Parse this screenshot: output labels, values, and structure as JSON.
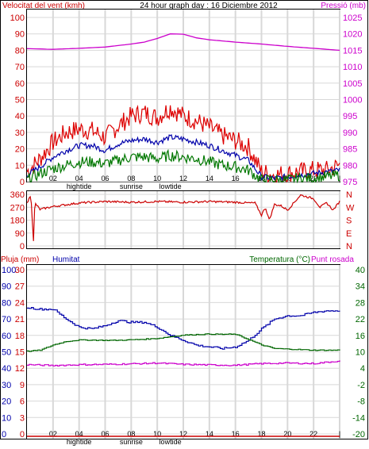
{
  "header": {
    "left": "Velocitat del vent (kmh)",
    "center": "24 hour graph day : 16 Diciembre 2012",
    "right": "Pressió (mb)"
  },
  "panel3_header": {
    "rain": "Pluja (mm)",
    "humidity": "Humitat",
    "temperature": "Temperatura (°C)",
    "dewpoint": "Punt rosada"
  },
  "colors": {
    "wind_axis": "#cc0000",
    "pressure_axis": "#cc00cc",
    "gust": "#dd0000",
    "avg": "#0000aa",
    "min": "#007700",
    "pressure": "#cc00cc",
    "direction": "#cc0000",
    "humidity": "#0000aa",
    "temperature": "#006600",
    "dewpoint": "#cc00cc",
    "rain": "#cc0000",
    "temp_axis": "#006600",
    "grid": "#d8d8d8"
  },
  "chart_data": [
    {
      "type": "line",
      "panel": "wind_pressure",
      "x_ticks": [
        "02",
        "04",
        "06",
        "08",
        "10",
        "12",
        "14",
        "16",
        "18",
        "20",
        "22",
        "|"
      ],
      "events": [
        {
          "hour": 4,
          "label": "hightide"
        },
        {
          "hour": 8,
          "label": "sunrise"
        },
        {
          "hour": 11,
          "label": "lowtide"
        }
      ],
      "y_left": {
        "label": "Velocitat del vent (kmh)",
        "range": [
          0,
          100
        ],
        "ticks": [
          0,
          10,
          20,
          30,
          40,
          50,
          60,
          70,
          80,
          90,
          100
        ]
      },
      "y_right": {
        "label": "Pressió (mb)",
        "range": [
          975,
          1025
        ],
        "ticks": [
          975,
          980,
          985,
          990,
          995,
          1000,
          1005,
          1010,
          1015,
          1020,
          1025
        ]
      },
      "series": [
        {
          "name": "gust",
          "hours": [
            0,
            1,
            2,
            3,
            4,
            5,
            6,
            7,
            8,
            9,
            10,
            11,
            12,
            13,
            14,
            15,
            16,
            17,
            18,
            19,
            20,
            21,
            22,
            23,
            24
          ],
          "values": [
            6,
            14,
            24,
            30,
            32,
            31,
            27,
            34,
            40,
            42,
            39,
            45,
            40,
            37,
            33,
            28,
            25,
            21,
            6,
            4,
            5,
            6,
            7,
            7,
            10
          ]
        },
        {
          "name": "avg",
          "hours": [
            0,
            1,
            2,
            3,
            4,
            5,
            6,
            7,
            8,
            9,
            10,
            11,
            12,
            13,
            14,
            15,
            16,
            17,
            18,
            19,
            20,
            21,
            22,
            23,
            24
          ],
          "values": [
            4,
            9,
            15,
            19,
            22,
            22,
            19,
            23,
            25,
            26,
            24,
            27,
            26,
            24,
            22,
            19,
            16,
            13,
            3,
            2,
            3,
            4,
            5,
            6,
            7
          ]
        },
        {
          "name": "min",
          "hours": [
            0,
            1,
            2,
            3,
            4,
            5,
            6,
            7,
            8,
            9,
            10,
            11,
            12,
            13,
            14,
            15,
            16,
            17,
            18,
            19,
            20,
            21,
            22,
            23,
            24
          ],
          "values": [
            1,
            5,
            8,
            10,
            12,
            12,
            11,
            13,
            15,
            15,
            14,
            16,
            15,
            14,
            12,
            10,
            9,
            7,
            1,
            1,
            1,
            2,
            2,
            3,
            4
          ]
        },
        {
          "name": "pressure",
          "hours": [
            0,
            2,
            4,
            6,
            8,
            9,
            10,
            11,
            12,
            13,
            14,
            16,
            18,
            20,
            22,
            24
          ],
          "values": [
            1015.5,
            1015.3,
            1015.6,
            1016.0,
            1016.9,
            1017.5,
            1018.6,
            1020.0,
            1019.9,
            1018.8,
            1018.2,
            1017.5,
            1016.9,
            1016.2,
            1015.6,
            1015.0
          ]
        }
      ]
    },
    {
      "type": "line",
      "panel": "wind_direction",
      "y_left": {
        "range": [
          0,
          360
        ],
        "ticks": [
          0,
          90,
          180,
          270,
          360
        ]
      },
      "y_right_labels": [
        "N",
        "W",
        "S",
        "E",
        "N"
      ],
      "series": [
        {
          "name": "direction",
          "hours": [
            0,
            0.3,
            0.5,
            0.6,
            0.7,
            1,
            2,
            4,
            6,
            8,
            10,
            12,
            14,
            16,
            17,
            17.5,
            18,
            18.3,
            18.6,
            19,
            19.5,
            20,
            21,
            22,
            22.5,
            23,
            23.5,
            24
          ],
          "values": [
            295,
            360,
            30,
            300,
            290,
            255,
            275,
            300,
            310,
            305,
            310,
            305,
            310,
            305,
            300,
            300,
            215,
            270,
            180,
            290,
            280,
            250,
            355,
            330,
            270,
            300,
            250,
            310
          ]
        }
      ]
    },
    {
      "type": "line",
      "panel": "humidity_temperature",
      "y_rain": {
        "label": "Pluja (mm)",
        "range": [
          0,
          30
        ],
        "ticks": [
          0,
          3,
          6,
          9,
          12,
          15,
          18,
          21,
          24,
          27,
          30
        ]
      },
      "y_humidity": {
        "label": "Humitat",
        "range": [
          0,
          100
        ],
        "ticks": [
          0,
          10,
          20,
          30,
          40,
          50,
          60,
          70,
          80,
          90,
          100
        ]
      },
      "y_temperature": {
        "label": "Temperatura (°C)",
        "range": [
          -20,
          40
        ],
        "ticks": [
          -20,
          -14,
          -8,
          -2,
          4,
          10,
          16,
          22,
          28,
          34,
          40
        ]
      },
      "series": [
        {
          "name": "humidity",
          "hours": [
            0,
            1,
            2,
            3,
            4,
            5,
            6,
            7,
            8,
            9,
            10,
            11,
            12,
            13,
            14,
            15,
            16,
            17,
            18,
            19,
            20,
            21,
            22,
            23,
            24
          ],
          "values": [
            77,
            76,
            76,
            70,
            65,
            64,
            66,
            69,
            68,
            68,
            65,
            60,
            57,
            54,
            53,
            52,
            53,
            57,
            64,
            70,
            72,
            72,
            74,
            75,
            75
          ]
        },
        {
          "name": "temperature",
          "hours": [
            0,
            1,
            2,
            3,
            4,
            5,
            6,
            7,
            8,
            9,
            10,
            11,
            12,
            13,
            14,
            15,
            16,
            17,
            18,
            19,
            20,
            21,
            22,
            23,
            24
          ],
          "values": [
            10.2,
            10.6,
            12.5,
            13.8,
            14.3,
            14.3,
            14.2,
            14.2,
            14.4,
            14.6,
            14.9,
            15.5,
            16.1,
            16.3,
            16.5,
            16.4,
            16.4,
            14.5,
            12.5,
            11.2,
            11.0,
            10.8,
            10.6,
            10.6,
            10.6
          ]
        },
        {
          "name": "dewpoint",
          "hours": [
            0,
            2,
            4,
            6,
            8,
            10,
            12,
            14,
            16,
            18,
            20,
            22,
            24
          ],
          "values": [
            5.3,
            5.0,
            5.3,
            5.4,
            5.6,
            5.9,
            5.4,
            5.2,
            5.1,
            5.7,
            5.9,
            5.7,
            6.7
          ]
        },
        {
          "name": "rain",
          "hours": [
            0,
            24
          ],
          "values": [
            0,
            0
          ]
        }
      ]
    }
  ]
}
